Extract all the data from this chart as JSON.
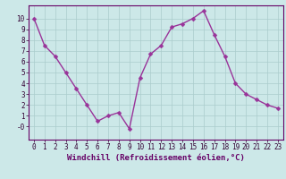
{
  "x": [
    0,
    1,
    2,
    3,
    4,
    5,
    6,
    7,
    8,
    9,
    10,
    11,
    12,
    13,
    14,
    15,
    16,
    17,
    18,
    19,
    20,
    21,
    22,
    23
  ],
  "y": [
    10,
    7.5,
    6.5,
    5,
    3.5,
    2,
    0.5,
    1,
    1.3,
    -0.2,
    4.5,
    6.7,
    7.5,
    9.2,
    9.5,
    10,
    10.7,
    8.5,
    6.5,
    4,
    3,
    2.5,
    2,
    1.7
  ],
  "line_color": "#993399",
  "marker_color": "#993399",
  "bg_color": "#cce8e8",
  "grid_color": "#aacccc",
  "xlabel": "Windchill (Refroidissement éolien,°C)",
  "xlim": [
    -0.5,
    23.5
  ],
  "ylim": [
    -1.2,
    11.2
  ],
  "ytick_vals": [
    0,
    1,
    2,
    3,
    4,
    5,
    6,
    7,
    8,
    9,
    10
  ],
  "ytick_labels": [
    "-0",
    "1",
    "2",
    "3",
    "4",
    "5",
    "6",
    "7",
    "8",
    "9",
    "10"
  ],
  "xticks": [
    0,
    1,
    2,
    3,
    4,
    5,
    6,
    7,
    8,
    9,
    10,
    11,
    12,
    13,
    14,
    15,
    16,
    17,
    18,
    19,
    20,
    21,
    22,
    23
  ],
  "xlabel_fontsize": 6.5,
  "tick_fontsize": 5.5,
  "line_width": 1.0,
  "marker_size": 2.5,
  "spine_color": "#660066",
  "label_color": "#660066",
  "tick_color": "#330033"
}
